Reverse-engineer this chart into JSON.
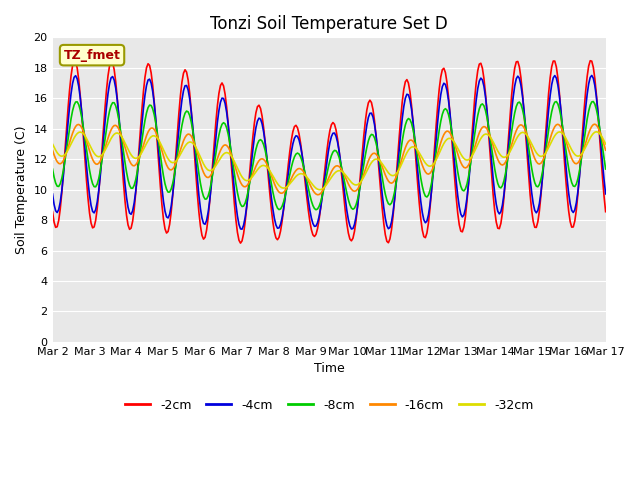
{
  "title": "Tonzi Soil Temperature Set D",
  "xlabel": "Time",
  "ylabel": "Soil Temperature (C)",
  "annotation": "TZ_fmet",
  "ylim": [
    0,
    20
  ],
  "xlim_days": 15,
  "n_points": 360,
  "xtick_labels": [
    "Mar 2",
    "Mar 3",
    "Mar 4",
    "Mar 5",
    "Mar 6",
    "Mar 7",
    "Mar 8",
    "Mar 9",
    "Mar 10",
    "Mar 11",
    "Mar 12",
    "Mar 13",
    "Mar 14",
    "Mar 15",
    "Mar 16",
    "Mar 17"
  ],
  "series_colors": [
    "#ff0000",
    "#0000dd",
    "#00cc00",
    "#ff8800",
    "#dddd00"
  ],
  "series_labels": [
    "-2cm",
    "-4cm",
    "-8cm",
    "-16cm",
    "-32cm"
  ],
  "background_color": "#e8e8e8",
  "fig_background": "#ffffff",
  "grid_color": "#ffffff",
  "title_fontsize": 12,
  "axis_fontsize": 9,
  "tick_fontsize": 8
}
